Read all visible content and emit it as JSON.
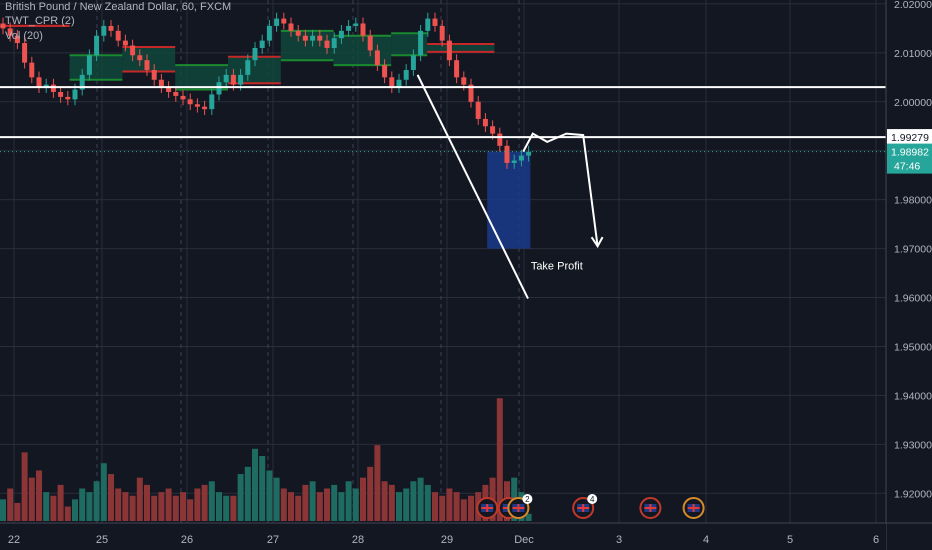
{
  "header": {
    "title": "British Pound / New Zealand Dollar, 60, FXCM",
    "indicator_1": "TWT_CPR (2)",
    "indicator_2": "Vol (20)"
  },
  "colors": {
    "background": "#131722",
    "grid": "#2a2e39",
    "axis_text": "#b2b5be",
    "up": "#26a69a",
    "down": "#ef5350",
    "volume_up": "#1e6b62",
    "volume_down": "#8b3537",
    "cpr_green": "#1b8a2f",
    "cpr_red": "#c62828",
    "cpr_fill": "#0f4a3d",
    "target_fill": "#1a3a8a",
    "price_badge": "#26a69a",
    "annotation": "#ffffff"
  },
  "chart_data": {
    "type": "candlestick",
    "symbol": "GBPNZD",
    "timeframe": "60",
    "source": "FXCM",
    "y_axis": {
      "ticks": [
        "2.02000",
        "2.01000",
        "2.00000",
        "1.99000",
        "1.98000",
        "1.97000",
        "1.96000",
        "1.95000",
        "1.94000",
        "1.93000",
        "1.92000"
      ],
      "range": [
        1.9125,
        2.0208
      ]
    },
    "x_axis": {
      "ticks": [
        "22",
        "25",
        "26",
        "27",
        "28",
        "29",
        "Dec",
        "3",
        "4",
        "5",
        "6"
      ]
    },
    "price_series": {
      "name": "GBPNZD close (approx.)",
      "x": [
        0,
        3,
        6,
        9,
        12,
        15,
        18,
        21,
        24,
        27,
        30,
        33,
        36,
        39,
        42,
        45,
        48,
        51,
        54,
        57,
        60,
        63,
        66,
        69,
        72,
        75,
        78,
        81,
        84,
        87,
        90,
        93,
        96,
        99,
        102,
        105,
        108,
        111,
        114,
        117,
        120,
        123,
        126,
        129,
        132,
        135,
        138,
        141,
        144,
        147,
        150,
        153,
        156,
        159,
        162,
        165,
        168,
        171,
        174,
        177,
        180,
        183,
        186,
        189,
        192,
        195,
        198,
        201,
        204,
        207,
        210,
        213,
        216,
        219
      ],
      "values": [
        2.015,
        2.0135,
        2.012,
        2.008,
        2.005,
        2.003,
        2.0035,
        2.002,
        2.001,
        2.0005,
        2.0025,
        2.0055,
        2.0095,
        2.0135,
        2.0155,
        2.0145,
        2.0125,
        2.0115,
        2.0095,
        2.0085,
        2.0065,
        2.0045,
        2.003,
        2.002,
        2.0012,
        2.0005,
        1.9995,
        1.999,
        1.9985,
        2.0015,
        2.004,
        2.0055,
        2.0035,
        2.0055,
        2.0085,
        2.011,
        2.0125,
        2.0155,
        2.017,
        2.016,
        2.0145,
        2.0135,
        2.0125,
        2.0135,
        2.0125,
        2.011,
        2.013,
        2.0145,
        2.0155,
        2.016,
        2.0135,
        2.0105,
        2.0075,
        2.005,
        2.003,
        2.0045,
        2.0065,
        2.0095,
        2.0145,
        2.017,
        2.0155,
        2.0125,
        2.0085,
        2.005,
        2.0035,
        2.0,
        1.9965,
        1.995,
        1.9935,
        1.991,
        1.9875,
        1.988,
        1.989,
        1.9898
      ]
    },
    "volume_series": {
      "name": "Vol (20)",
      "x": [
        0,
        3,
        6,
        9,
        12,
        15,
        18,
        21,
        24,
        27,
        30,
        33,
        36,
        39,
        42,
        45,
        48,
        51,
        54,
        57,
        60,
        63,
        66,
        69,
        72,
        75,
        78,
        81,
        84,
        87,
        90,
        93,
        96,
        99,
        102,
        105,
        108,
        111,
        114,
        117,
        120,
        123,
        126,
        129,
        132,
        135,
        138,
        141,
        144,
        147,
        150,
        153,
        156,
        159,
        162,
        165,
        168,
        171,
        174,
        177,
        180,
        183,
        186,
        189,
        192,
        195,
        198,
        201,
        204,
        207,
        210,
        213,
        216,
        219
      ],
      "values": [
        30,
        45,
        25,
        95,
        60,
        70,
        40,
        35,
        50,
        20,
        30,
        45,
        40,
        55,
        80,
        65,
        45,
        40,
        35,
        60,
        50,
        35,
        40,
        45,
        35,
        40,
        30,
        45,
        50,
        55,
        40,
        35,
        35,
        65,
        75,
        100,
        90,
        70,
        60,
        45,
        40,
        35,
        50,
        55,
        40,
        45,
        50,
        40,
        55,
        45,
        60,
        75,
        105,
        55,
        50,
        40,
        45,
        55,
        60,
        50,
        40,
        35,
        45,
        40,
        30,
        35,
        40,
        50,
        60,
        170,
        55,
        60,
        40,
        10
      ],
      "max_units": 180
    },
    "cpr_levels": [
      {
        "x_from": 0,
        "x_to": 29,
        "top": 2.0155,
        "bottom": 2.0155,
        "color_key": "cpr_red"
      },
      {
        "x_from": 29,
        "x_to": 51,
        "top": 2.0095,
        "bottom": 2.0045,
        "color_key": "cpr_green"
      },
      {
        "x_from": 51,
        "x_to": 73,
        "top": 2.0112,
        "bottom": 2.0062,
        "color_key": "cpr_red"
      },
      {
        "x_from": 73,
        "x_to": 95,
        "top": 2.0075,
        "bottom": 2.0025,
        "color_key": "cpr_green"
      },
      {
        "x_from": 95,
        "x_to": 117,
        "top": 2.0092,
        "bottom": 2.0038,
        "color_key": "cpr_red"
      },
      {
        "x_from": 117,
        "x_to": 139,
        "top": 2.0145,
        "bottom": 2.0085,
        "color_key": "cpr_green"
      },
      {
        "x_from": 139,
        "x_to": 163,
        "top": 2.0135,
        "bottom": 2.0075,
        "color_key": "cpr_green"
      },
      {
        "x_from": 163,
        "x_to": 178,
        "top": 2.014,
        "bottom": 2.0095,
        "color_key": "cpr_green"
      },
      {
        "x_from": 178,
        "x_to": 206,
        "top": 2.0118,
        "bottom": 2.0102,
        "color_key": "cpr_red"
      }
    ],
    "horizontal_lines": [
      {
        "price": 2.003,
        "label": ""
      },
      {
        "price": 1.99279,
        "label": "1.99279"
      }
    ],
    "current_price": {
      "price": 1.98982,
      "label": "1.98982",
      "countdown": "47:46"
    },
    "trendline": {
      "from": [
        174,
        2.0055
      ],
      "to": [
        220,
        1.9598
      ]
    },
    "target_box": {
      "x_from": 203,
      "x_to": 221,
      "top": 1.98982,
      "bottom": 1.97
    },
    "projection_path": [
      [
        218,
        1.98982
      ],
      [
        222,
        1.9935
      ],
      [
        228,
        1.9918
      ],
      [
        236,
        1.9935
      ],
      [
        243,
        1.9932
      ],
      [
        249,
        1.9705
      ]
    ],
    "annotations": [
      {
        "text": "Take Profit",
        "price": 1.9665,
        "x": 232
      }
    ],
    "event_markers": [
      {
        "x": 203,
        "flag": "gb",
        "count": ""
      },
      {
        "x": 212,
        "flag": "gb",
        "count": ""
      },
      {
        "x": 216,
        "flag": "nz",
        "count": "2"
      },
      {
        "x": 243,
        "flag": "gb",
        "count": "4"
      },
      {
        "x": 271,
        "flag": "gb",
        "count": ""
      },
      {
        "x": 289,
        "flag": "nz",
        "count": ""
      }
    ]
  }
}
